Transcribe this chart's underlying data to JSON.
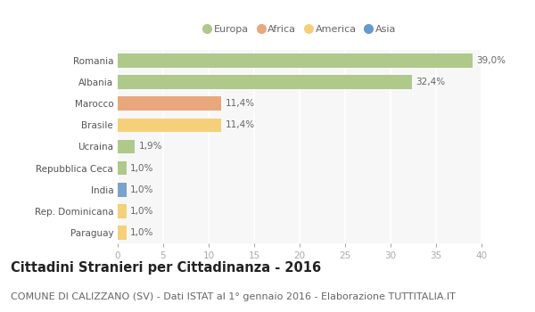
{
  "categories": [
    "Romania",
    "Albania",
    "Marocco",
    "Brasile",
    "Ucraina",
    "Repubblica Ceca",
    "India",
    "Rep. Dominicana",
    "Paraguay"
  ],
  "values": [
    39.0,
    32.4,
    11.4,
    11.4,
    1.9,
    1.0,
    1.0,
    1.0,
    1.0
  ],
  "labels": [
    "39,0%",
    "32,4%",
    "11,4%",
    "11,4%",
    "1,9%",
    "1,0%",
    "1,0%",
    "1,0%",
    "1,0%"
  ],
  "colors": [
    "#aec98a",
    "#aec98a",
    "#e8a87c",
    "#f5d07a",
    "#aec98a",
    "#aec98a",
    "#7aa3cc",
    "#f5d07a",
    "#f5d07a"
  ],
  "legend": [
    {
      "label": "Europa",
      "color": "#aec98a"
    },
    {
      "label": "Africa",
      "color": "#e8a87c"
    },
    {
      "label": "America",
      "color": "#f5d07a"
    },
    {
      "label": "Asia",
      "color": "#6699cc"
    }
  ],
  "xlim": [
    0,
    40
  ],
  "xticks": [
    0,
    5,
    10,
    15,
    20,
    25,
    30,
    35,
    40
  ],
  "title_bold": "Cittadini Stranieri per Cittadinanza - 2016",
  "subtitle": "COMUNE DI CALIZZANO (SV) - Dati ISTAT al 1° gennaio 2016 - Elaborazione TUTTITALIA.IT",
  "bg_color": "#ffffff",
  "plot_bg_color": "#f7f7f7",
  "grid_color": "#ffffff",
  "title_fontsize": 10.5,
  "subtitle_fontsize": 8,
  "label_fontsize": 7.5,
  "tick_fontsize": 7.5,
  "bar_height": 0.65
}
